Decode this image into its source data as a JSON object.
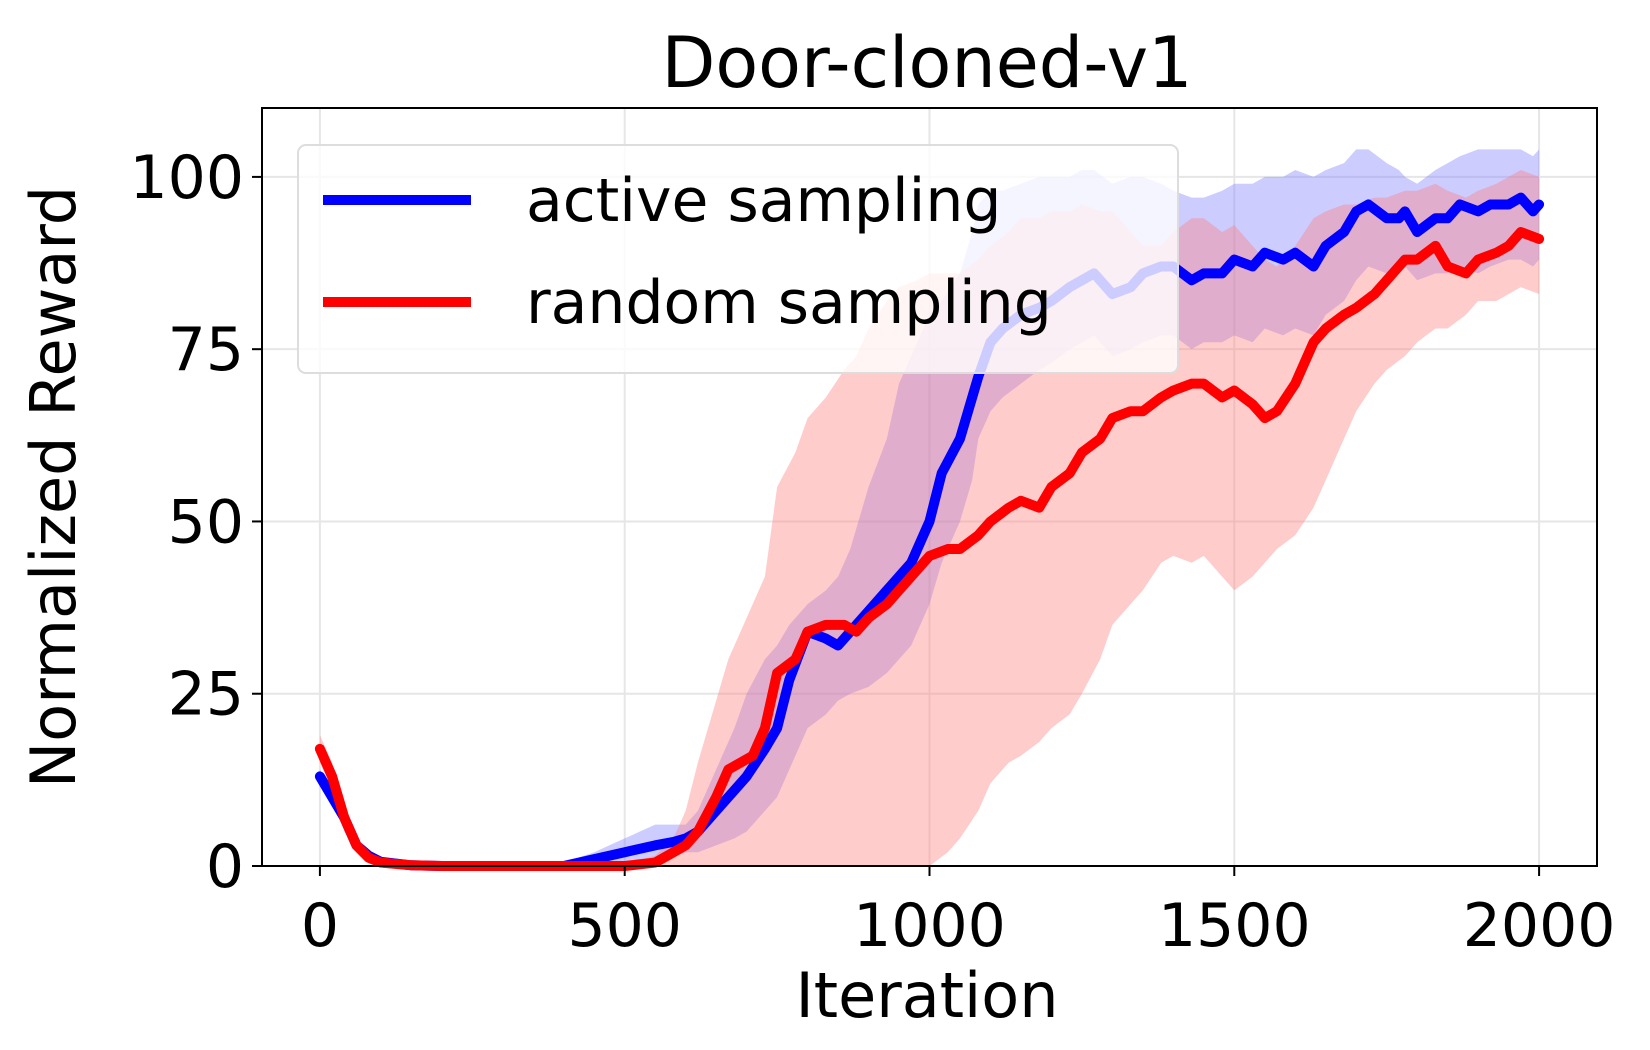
{
  "chart_data": {
    "type": "line",
    "title": "Door-cloned-v1",
    "xlabel": "Iteration",
    "ylabel": "Normalized Reward",
    "xlim": [
      -95,
      2095
    ],
    "ylim": [
      0,
      110
    ],
    "xticks": [
      0,
      500,
      1000,
      1500,
      2000
    ],
    "yticks": [
      0,
      25,
      50,
      75,
      100
    ],
    "grid": true,
    "legend_position": "top-left",
    "series": [
      {
        "name": "active sampling",
        "color": "#0000ff",
        "band_color": "#8080ff",
        "x": [
          0,
          20,
          40,
          60,
          80,
          100,
          150,
          200,
          300,
          400,
          450,
          500,
          550,
          580,
          600,
          620,
          650,
          680,
          700,
          730,
          750,
          770,
          800,
          830,
          850,
          870,
          900,
          930,
          950,
          970,
          1000,
          1020,
          1050,
          1070,
          1080,
          1100,
          1120,
          1150,
          1180,
          1200,
          1230,
          1250,
          1270,
          1300,
          1330,
          1350,
          1380,
          1400,
          1430,
          1450,
          1480,
          1500,
          1530,
          1550,
          1580,
          1600,
          1630,
          1650,
          1680,
          1700,
          1720,
          1750,
          1770,
          1780,
          1800,
          1830,
          1850,
          1870,
          1900,
          1920,
          1950,
          1970,
          1990,
          2000
        ],
        "mean": [
          13,
          10,
          7,
          3,
          1.5,
          0.6,
          0.1,
          0,
          0,
          0,
          1,
          2,
          3,
          3.5,
          4,
          5,
          8,
          11,
          13,
          17,
          20,
          27,
          34,
          33,
          32,
          34,
          37,
          40,
          42,
          44,
          50,
          57,
          62,
          68,
          71,
          76,
          78,
          80,
          81,
          82,
          84,
          85,
          86,
          83,
          84,
          86,
          87,
          87,
          85,
          86,
          86,
          88,
          87,
          89,
          88,
          89,
          87,
          90,
          92,
          95,
          96,
          94,
          94,
          95,
          92,
          94,
          94,
          96,
          95,
          96,
          96,
          97,
          95,
          96
        ],
        "upper": [
          14,
          11,
          8,
          3.5,
          1.8,
          0.8,
          0.2,
          0,
          0,
          0.5,
          2,
          4,
          6,
          6,
          6,
          8,
          14,
          20,
          25,
          30,
          32,
          35,
          38,
          40,
          42,
          46,
          55,
          62,
          70,
          74,
          80,
          82,
          86,
          92,
          96,
          98,
          98,
          99,
          100,
          100,
          100,
          101,
          101,
          99,
          100,
          100,
          99,
          98,
          97,
          97,
          98,
          99,
          99,
          100,
          100,
          101,
          100,
          101,
          102,
          104,
          104,
          102,
          101,
          100,
          99,
          101,
          102,
          103,
          104,
          104,
          104,
          104,
          103,
          104
        ],
        "lower": [
          12,
          9,
          6,
          2.5,
          1.2,
          0.4,
          0,
          0,
          0,
          0,
          0,
          0.5,
          1,
          1.5,
          2,
          2,
          3,
          4,
          5,
          8,
          10,
          14,
          20,
          22,
          24,
          25,
          26,
          28,
          30,
          32,
          38,
          44,
          50,
          56,
          62,
          66,
          68,
          70,
          72,
          73,
          75,
          76,
          77,
          74,
          75,
          76,
          77,
          77,
          75,
          76,
          76,
          77,
          76,
          78,
          77,
          78,
          77,
          80,
          82,
          85,
          87,
          86,
          86,
          87,
          85,
          86,
          86,
          87,
          86,
          87,
          88,
          88,
          87,
          88
        ]
      },
      {
        "name": "random sampling",
        "color": "#ff0000",
        "band_color": "#ff8080",
        "x": [
          0,
          20,
          40,
          60,
          80,
          100,
          150,
          200,
          300,
          400,
          500,
          550,
          580,
          600,
          620,
          650,
          670,
          690,
          710,
          730,
          750,
          780,
          800,
          830,
          860,
          880,
          900,
          930,
          950,
          980,
          1000,
          1030,
          1050,
          1080,
          1100,
          1130,
          1150,
          1180,
          1200,
          1230,
          1250,
          1280,
          1300,
          1330,
          1350,
          1380,
          1400,
          1430,
          1450,
          1480,
          1500,
          1530,
          1550,
          1570,
          1600,
          1630,
          1650,
          1680,
          1700,
          1730,
          1750,
          1780,
          1800,
          1830,
          1850,
          1880,
          1900,
          1930,
          1950,
          1970,
          2000
        ],
        "mean": [
          17,
          13,
          7,
          3,
          1.2,
          0.5,
          0.1,
          0,
          0,
          0,
          0,
          0.5,
          2,
          3,
          5,
          10,
          14,
          15,
          16,
          20,
          28,
          30,
          34,
          35,
          35,
          34,
          36,
          38,
          40,
          43,
          45,
          46,
          46,
          48,
          50,
          52,
          53,
          52,
          55,
          57,
          60,
          62,
          65,
          66,
          66,
          68,
          69,
          70,
          70,
          68,
          69,
          67,
          65,
          66,
          70,
          76,
          78,
          80,
          81,
          83,
          85,
          88,
          88,
          90,
          87,
          86,
          88,
          89,
          90,
          92,
          91
        ],
        "upper": [
          19,
          15,
          9,
          4,
          1.8,
          0.8,
          0.2,
          0,
          0,
          0,
          0.3,
          1.5,
          4,
          8,
          15,
          24,
          30,
          34,
          38,
          42,
          55,
          60,
          65,
          68,
          72,
          74,
          78,
          82,
          84,
          85,
          86,
          86,
          86,
          88,
          90,
          92,
          94,
          94,
          95,
          95,
          96,
          95,
          95,
          92,
          90,
          90,
          92,
          94,
          94,
          92,
          93,
          90,
          88,
          87,
          90,
          94,
          95,
          96,
          96,
          97,
          97,
          98,
          98,
          99,
          98,
          97,
          98,
          99,
          100,
          101,
          100
        ],
        "lower": [
          15,
          11,
          5,
          2,
          0.8,
          0.2,
          0,
          0,
          0,
          0,
          0,
          0,
          0,
          0,
          0,
          0,
          0,
          0,
          0,
          0,
          0,
          0,
          0,
          0,
          0,
          0,
          0,
          0,
          0,
          0,
          0,
          2,
          4,
          8,
          12,
          15,
          16,
          18,
          20,
          22,
          25,
          30,
          35,
          38,
          40,
          44,
          45,
          44,
          45,
          42,
          40,
          42,
          44,
          46,
          48,
          52,
          56,
          62,
          66,
          70,
          72,
          74,
          76,
          78,
          78,
          80,
          82,
          82,
          83,
          84,
          83
        ]
      }
    ]
  }
}
